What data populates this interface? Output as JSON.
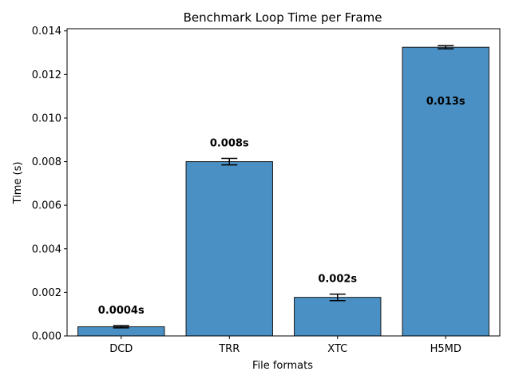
{
  "chart_data": {
    "type": "bar",
    "title": "Benchmark Loop Time per Frame",
    "xlabel": "File formats",
    "ylabel": "Time (s)",
    "categories": [
      "DCD",
      "TRR",
      "XTC",
      "H5MD"
    ],
    "values": [
      0.00042,
      0.008,
      0.00177,
      0.01325
    ],
    "errors": [
      5e-05,
      0.00015,
      0.00015,
      7e-05
    ],
    "data_labels": [
      "0.0004s",
      "0.008s",
      "0.002s",
      "0.013s"
    ],
    "ylim": [
      0,
      0.0141
    ],
    "yticks": [
      0.0,
      0.002,
      0.004,
      0.006,
      0.008,
      0.01,
      0.012,
      0.014
    ],
    "ytick_labels": [
      "0.000",
      "0.002",
      "0.004",
      "0.006",
      "0.008",
      "0.010",
      "0.012",
      "0.014"
    ],
    "grid": false,
    "legend": "none",
    "colors": {
      "bar": "#4a90c4",
      "bar_edge": "#1a1a1a",
      "error": "#000000"
    }
  }
}
